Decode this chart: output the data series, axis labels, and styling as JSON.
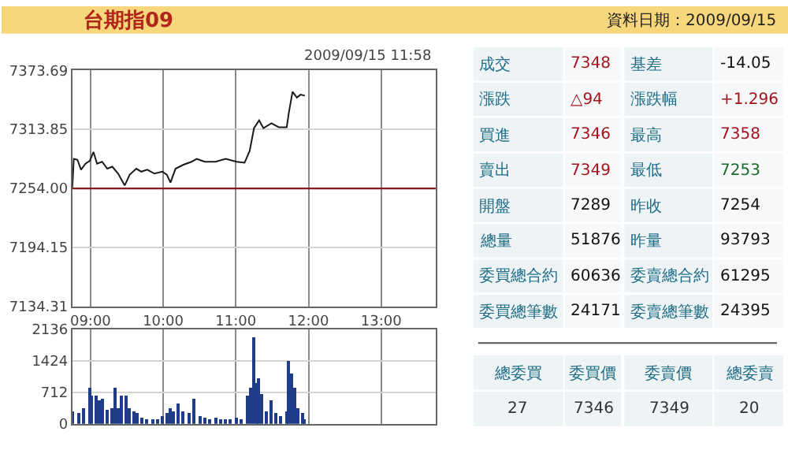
{
  "chart_data": [
    {
      "type": "line",
      "title": "台期指09",
      "annotations": [
        "2009/09/15 11:58"
      ],
      "x": [
        8.75,
        8.77,
        8.82,
        8.87,
        8.93,
        8.99,
        9.04,
        9.09,
        9.16,
        9.23,
        9.3,
        9.38,
        9.47,
        9.54,
        9.63,
        9.7,
        9.78,
        9.88,
        9.99,
        10.05,
        10.1,
        10.17,
        10.28,
        10.39,
        10.46,
        10.57,
        10.72,
        10.86,
        11.01,
        11.12,
        11.19,
        11.25,
        11.32,
        11.38,
        11.49,
        11.59,
        11.7,
        11.73,
        11.78,
        11.84,
        11.89,
        11.95
      ],
      "series": [
        {
          "color": "#1a1a1a",
          "values": [
            7255,
            7284,
            7283,
            7273,
            7279,
            7282,
            7291,
            7279,
            7281,
            7274,
            7276,
            7269,
            7257,
            7268,
            7274,
            7271,
            7273,
            7269,
            7271,
            7268,
            7260,
            7274,
            7278,
            7281,
            7284,
            7281,
            7281,
            7284,
            7281,
            7280,
            7292,
            7315,
            7323,
            7315,
            7320,
            7316,
            7316,
            7331,
            7352,
            7346,
            7349,
            7348
          ]
        }
      ],
      "xlim": [
        8.75,
        13.75
      ],
      "xticks": [
        {
          "value": 9,
          "label": "09:00"
        },
        {
          "value": 10,
          "label": "10:00"
        },
        {
          "value": 11,
          "label": "11:00"
        },
        {
          "value": 12,
          "label": "12:00"
        },
        {
          "value": 13,
          "label": "13:00"
        }
      ],
      "ylim": [
        7134.31,
        7373.69
      ],
      "yticks": [
        7134.31,
        7194.15,
        {
          "value": 7254,
          "label": "7254.00"
        },
        7313.85,
        7373.69
      ],
      "ref_lines": [
        {
          "axis": "y",
          "value": 7254,
          "color": "#8b1a1a"
        }
      ],
      "grid": true
    },
    {
      "type": "bar",
      "x": [
        8.76,
        8.83,
        8.91,
        8.98,
        9.01,
        9.07,
        9.12,
        9.17,
        9.23,
        9.29,
        9.33,
        9.38,
        9.43,
        9.49,
        9.54,
        9.59,
        9.64,
        9.7,
        9.78,
        9.85,
        9.92,
        9.99,
        10.05,
        10.1,
        10.15,
        10.21,
        10.28,
        10.36,
        10.43,
        10.5,
        10.57,
        10.64,
        10.72,
        10.79,
        10.86,
        10.93,
        11.01,
        11.08,
        11.15,
        11.2,
        11.24,
        11.28,
        11.32,
        11.35,
        11.41,
        11.48,
        11.55,
        11.62,
        11.7,
        11.73,
        11.77,
        11.82,
        11.86,
        11.91,
        11.95
      ],
      "series": [
        {
          "color": "#1f3c88",
          "values": [
            290,
            230,
            340,
            800,
            630,
            630,
            520,
            570,
            320,
            340,
            800,
            340,
            630,
            630,
            340,
            290,
            230,
            140,
            120,
            120,
            90,
            170,
            230,
            340,
            290,
            460,
            290,
            250,
            570,
            170,
            140,
            120,
            140,
            120,
            120,
            120,
            140,
            120,
            630,
            800,
            1950,
            920,
            1030,
            690,
            290,
            520,
            230,
            170,
            290,
            1430,
            1150,
            800,
            340,
            230,
            120
          ]
        }
      ],
      "xlim": [
        8.75,
        13.75
      ],
      "xticks": [
        9,
        10,
        11,
        12,
        13
      ],
      "tick_labels": "y",
      "ylim": [
        0,
        2136
      ],
      "yticks": [
        0,
        712,
        1424,
        2136
      ],
      "grid": true
    },
    {
      "type": "other",
      "title": "資料日期：2009/09/15",
      "annotations": [
        "成交",
        "7348",
        "基差",
        "-14.05",
        "漲跌",
        "△94",
        "漲跌幅",
        "+1.296",
        "買進",
        "7346",
        "最高",
        "7358",
        "賣出",
        "7349",
        "最低",
        "7253",
        "開盤",
        "7289",
        "昨收",
        "7254",
        "總量",
        "51876",
        "昨量",
        "93793",
        "委買總合約",
        "60636",
        "委賣總合約",
        "61295",
        "委買總筆數",
        "24171",
        "委賣總筆數",
        "24395"
      ],
      "colors": [
        "#1f6d87",
        "#a3141e",
        "#1f6d87",
        "#111111",
        "#1f6d87",
        "#a3141e",
        "#1f6d87",
        "#a3141e",
        "#1f6d87",
        "#a3141e",
        "#1f6d87",
        "#a3141e",
        "#1f6d87",
        "#a3141e",
        "#1f6d87",
        "#1d6b2a",
        "#1f6d87",
        "#111111",
        "#1f6d87",
        "#111111",
        "#1f6d87",
        "#111111",
        "#1f6d87",
        "#111111",
        "#1f6d87",
        "#111111",
        "#1f6d87",
        "#111111",
        "#1f6d87",
        "#111111",
        "#1f6d87",
        "#111111"
      ]
    },
    {
      "type": "other",
      "annotations": [
        "總委買",
        "委買價",
        "委賣價",
        "總委賣",
        "27",
        "7346",
        "7349",
        "20"
      ],
      "colors": [
        "#1f6d87",
        "#1f6d87",
        "#1f6d87",
        "#1f6d87",
        "#333333",
        "#333333",
        "#333333",
        "#333333"
      ]
    }
  ]
}
